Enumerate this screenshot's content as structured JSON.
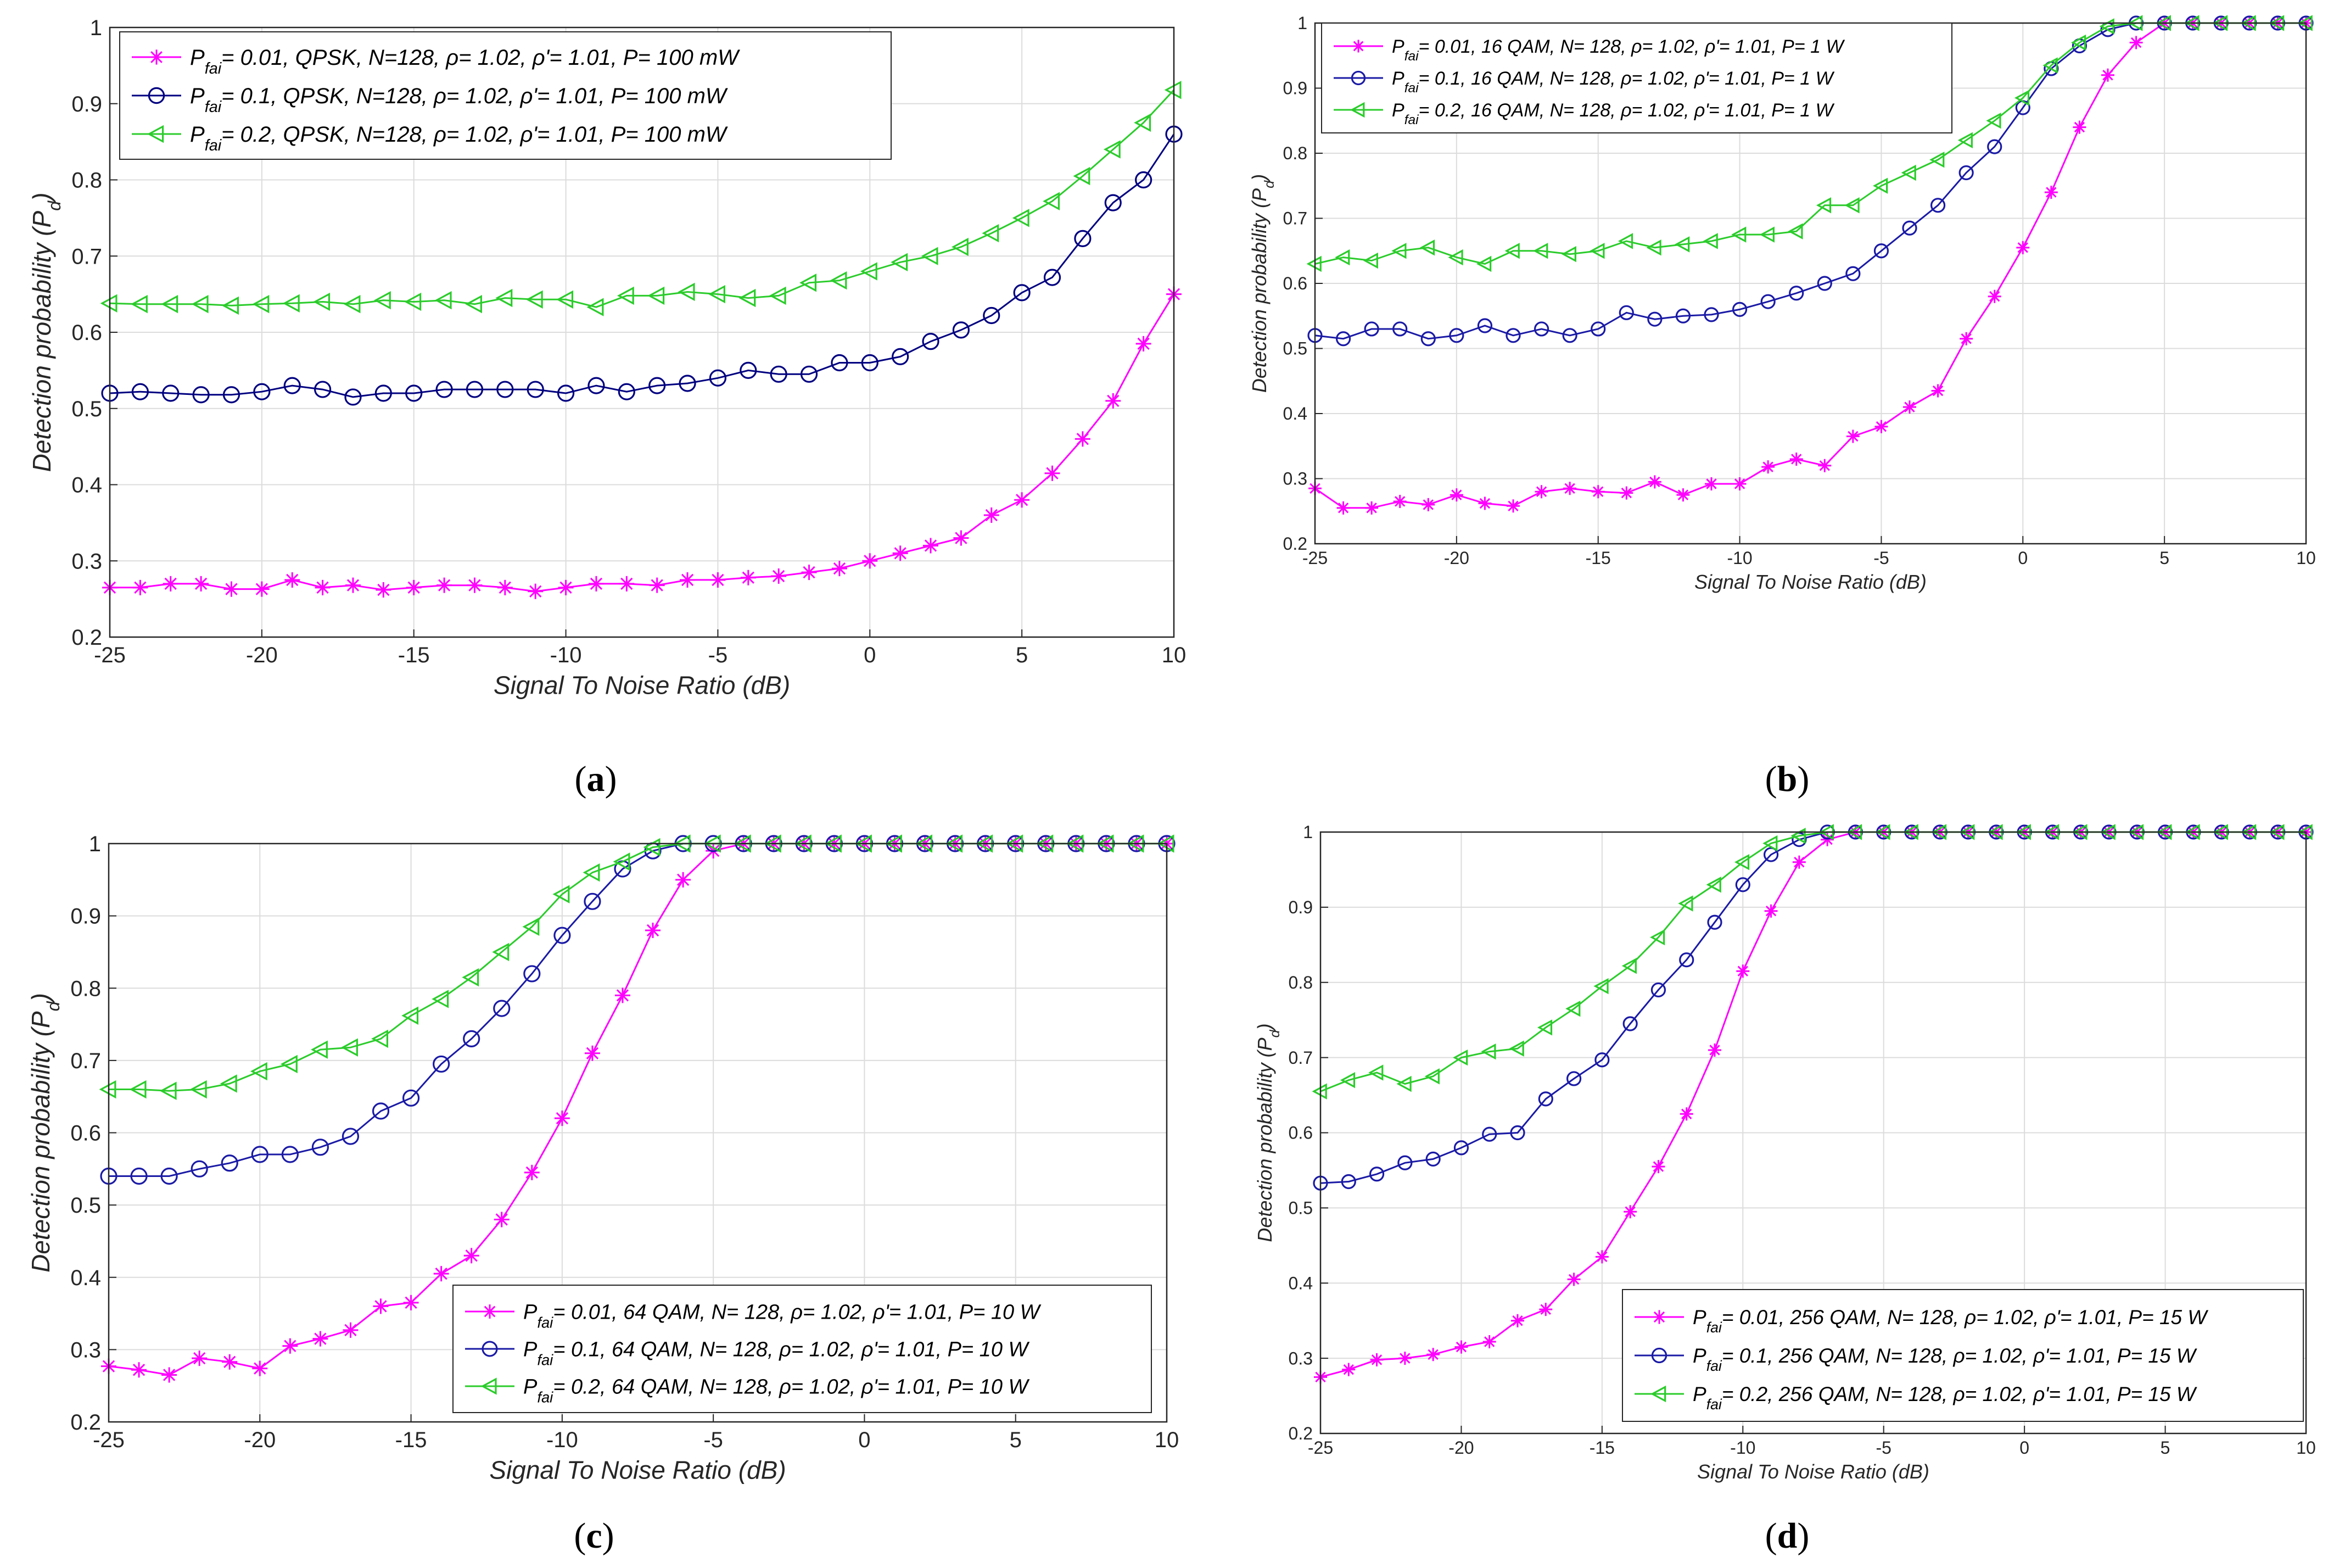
{
  "chart_data": [
    {
      "panel": "a",
      "caption": "(a)",
      "type": "line",
      "xlabel": "Signal To Noise Ratio (dB)",
      "ylabel": "Detection probability (P_d)",
      "xlim": [
        -25,
        10
      ],
      "ylim": [
        0.2,
        1
      ],
      "xticks": [
        -25,
        -20,
        -15,
        -10,
        -5,
        0,
        5,
        10
      ],
      "yticks": [
        0.2,
        0.3,
        0.4,
        0.5,
        0.6,
        0.7,
        0.8,
        0.9,
        1
      ],
      "grid": true,
      "legend_position": "top-left",
      "x": [
        -25,
        -24,
        -23,
        -22,
        -21,
        -20,
        -19,
        -18,
        -17,
        -16,
        -15,
        -14,
        -13,
        -12,
        -11,
        -10,
        -9,
        -8,
        -7,
        -6,
        -5,
        -4,
        -3,
        -2,
        -1,
        0,
        1,
        2,
        3,
        4,
        5,
        6,
        7,
        8,
        9,
        10
      ],
      "series": [
        {
          "legend": {
            "symbol": "P",
            "subscript": "fai",
            "text": "= 0.01, QPSK, N=128, ρ= 1.02, ρ'= 1.01, P= 100 mW"
          },
          "marker": "star",
          "color": "#ff00ff",
          "values": [
            0.265,
            0.265,
            0.27,
            0.27,
            0.263,
            0.263,
            0.275,
            0.265,
            0.268,
            0.262,
            0.265,
            0.268,
            0.268,
            0.265,
            0.26,
            0.265,
            0.27,
            0.27,
            0.268,
            0.275,
            0.275,
            0.278,
            0.28,
            0.285,
            0.29,
            0.3,
            0.31,
            0.32,
            0.33,
            0.36,
            0.38,
            0.415,
            0.46,
            0.51,
            0.585,
            0.65
          ]
        },
        {
          "legend": {
            "symbol": "P",
            "subscript": "fai",
            "text": "= 0.1, QPSK, N=128, ρ= 1.02, ρ'= 1.01, P= 100 mW"
          },
          "marker": "circle",
          "color": "#000080",
          "values": [
            0.52,
            0.522,
            0.52,
            0.518,
            0.518,
            0.522,
            0.53,
            0.525,
            0.515,
            0.52,
            0.52,
            0.525,
            0.525,
            0.525,
            0.525,
            0.52,
            0.53,
            0.522,
            0.53,
            0.533,
            0.54,
            0.55,
            0.545,
            0.545,
            0.56,
            0.56,
            0.568,
            0.588,
            0.603,
            0.622,
            0.652,
            0.672,
            0.723,
            0.77,
            0.8,
            0.86
          ]
        },
        {
          "legend": {
            "symbol": "P",
            "subscript": "fai",
            "text": "= 0.2, QPSK, N=128, ρ= 1.02, ρ'= 1.01, P= 100 mW"
          },
          "marker": "triangle-left",
          "color": "#2bcc2b",
          "values": [
            0.638,
            0.637,
            0.637,
            0.637,
            0.635,
            0.637,
            0.638,
            0.64,
            0.637,
            0.642,
            0.64,
            0.642,
            0.637,
            0.645,
            0.643,
            0.643,
            0.633,
            0.648,
            0.648,
            0.653,
            0.65,
            0.645,
            0.648,
            0.665,
            0.668,
            0.68,
            0.692,
            0.7,
            0.712,
            0.73,
            0.75,
            0.772,
            0.805,
            0.84,
            0.875,
            0.918
          ]
        }
      ]
    },
    {
      "panel": "b",
      "caption": "(b)",
      "type": "line",
      "xlabel": "Signal To Noise Ratio (dB)",
      "ylabel": "Detection probability (P_d)",
      "xlim": [
        -25,
        10
      ],
      "ylim": [
        0.2,
        1
      ],
      "xticks": [
        -25,
        -20,
        -15,
        -10,
        -5,
        0,
        5,
        10
      ],
      "yticks": [
        0.2,
        0.3,
        0.4,
        0.5,
        0.6,
        0.7,
        0.8,
        0.9,
        1
      ],
      "grid": true,
      "legend_position": "top-left",
      "x": [
        -25,
        -24,
        -23,
        -22,
        -21,
        -20,
        -19,
        -18,
        -17,
        -16,
        -15,
        -14,
        -13,
        -12,
        -11,
        -10,
        -9,
        -8,
        -7,
        -6,
        -5,
        -4,
        -3,
        -2,
        -1,
        0,
        1,
        2,
        3,
        4,
        5,
        6,
        7,
        8,
        9,
        10
      ],
      "series": [
        {
          "legend": {
            "symbol": "P",
            "subscript": "fai",
            "text": "= 0.01, 16 QAM, N= 128, ρ= 1.02, ρ'= 1.01, P= 1 W"
          },
          "marker": "star",
          "color": "#ff00ff",
          "values": [
            0.285,
            0.255,
            0.255,
            0.265,
            0.26,
            0.275,
            0.262,
            0.258,
            0.28,
            0.285,
            0.28,
            0.278,
            0.295,
            0.275,
            0.292,
            0.292,
            0.318,
            0.33,
            0.32,
            0.365,
            0.38,
            0.41,
            0.435,
            0.515,
            0.58,
            0.655,
            0.74,
            0.84,
            0.92,
            0.97,
            1,
            1,
            1,
            1,
            1,
            1
          ]
        },
        {
          "legend": {
            "symbol": "P",
            "subscript": "fai",
            "text": "= 0.1, 16 QAM, N= 128, ρ= 1.02, ρ'= 1.01, P= 1 W"
          },
          "marker": "circle",
          "color": "#1a1aa6",
          "values": [
            0.52,
            0.515,
            0.53,
            0.53,
            0.515,
            0.52,
            0.535,
            0.52,
            0.53,
            0.52,
            0.53,
            0.555,
            0.545,
            0.55,
            0.552,
            0.56,
            0.572,
            0.585,
            0.6,
            0.615,
            0.65,
            0.685,
            0.72,
            0.77,
            0.81,
            0.87,
            0.93,
            0.965,
            0.99,
            1,
            1,
            1,
            1,
            1,
            1,
            1
          ]
        },
        {
          "legend": {
            "symbol": "P",
            "subscript": "fai",
            "text": "= 0.2, 16 QAM, N= 128, ρ= 1.02, ρ'= 1.01, P= 1 W"
          },
          "marker": "triangle-left",
          "color": "#2bcc2b",
          "values": [
            0.63,
            0.64,
            0.635,
            0.65,
            0.655,
            0.64,
            0.63,
            0.65,
            0.65,
            0.645,
            0.65,
            0.665,
            0.655,
            0.66,
            0.665,
            0.675,
            0.675,
            0.68,
            0.72,
            0.72,
            0.75,
            0.77,
            0.79,
            0.82,
            0.85,
            0.885,
            0.935,
            0.97,
            0.995,
            1,
            1,
            1,
            1,
            1,
            1,
            1
          ]
        }
      ]
    },
    {
      "panel": "c",
      "caption": "(c)",
      "type": "line",
      "xlabel": "Signal To Noise Ratio (dB)",
      "ylabel": "Detection probability (P_d)",
      "xlim": [
        -25,
        10
      ],
      "ylim": [
        0.2,
        1
      ],
      "xticks": [
        -25,
        -20,
        -15,
        -10,
        -5,
        0,
        5,
        10
      ],
      "yticks": [
        0.2,
        0.3,
        0.4,
        0.5,
        0.6,
        0.7,
        0.8,
        0.9,
        1
      ],
      "grid": true,
      "legend_position": "bottom-right",
      "x": [
        -25,
        -24,
        -23,
        -22,
        -21,
        -20,
        -19,
        -18,
        -17,
        -16,
        -15,
        -14,
        -13,
        -12,
        -11,
        -10,
        -9,
        -8,
        -7,
        -6,
        -5,
        -4,
        -3,
        -2,
        -1,
        0,
        1,
        2,
        3,
        4,
        5,
        6,
        7,
        8,
        9,
        10
      ],
      "series": [
        {
          "legend": {
            "symbol": "P",
            "subscript": "fai",
            "text": "= 0.01, 64 QAM, N= 128, ρ= 1.02, ρ'= 1.01, P= 10 W"
          },
          "marker": "star",
          "color": "#ff00ff",
          "values": [
            0.277,
            0.272,
            0.265,
            0.288,
            0.283,
            0.274,
            0.305,
            0.315,
            0.327,
            0.36,
            0.365,
            0.405,
            0.43,
            0.48,
            0.545,
            0.62,
            0.71,
            0.79,
            0.88,
            0.95,
            0.99,
            1,
            1,
            1,
            1,
            1,
            1,
            1,
            1,
            1,
            1,
            1,
            1,
            1,
            1,
            1
          ]
        },
        {
          "legend": {
            "symbol": "P",
            "subscript": "fai",
            "text": "= 0.1, 64 QAM, N= 128, ρ= 1.02, ρ'= 1.01, P= 10 W"
          },
          "marker": "circle",
          "color": "#1a1aa6",
          "values": [
            0.54,
            0.54,
            0.54,
            0.55,
            0.558,
            0.57,
            0.57,
            0.58,
            0.595,
            0.63,
            0.648,
            0.695,
            0.73,
            0.772,
            0.82,
            0.873,
            0.92,
            0.965,
            0.99,
            1,
            1,
            1,
            1,
            1,
            1,
            1,
            1,
            1,
            1,
            1,
            1,
            1,
            1,
            1,
            1,
            1
          ]
        },
        {
          "legend": {
            "symbol": "P",
            "subscript": "fai",
            "text": "= 0.2, 64 QAM, N= 128, ρ= 1.02, ρ'= 1.01, P= 10 W"
          },
          "marker": "triangle-left",
          "color": "#2bcc2b",
          "values": [
            0.66,
            0.66,
            0.658,
            0.66,
            0.668,
            0.685,
            0.695,
            0.715,
            0.718,
            0.73,
            0.762,
            0.785,
            0.815,
            0.85,
            0.885,
            0.93,
            0.96,
            0.975,
            0.995,
            1,
            1,
            1,
            1,
            1,
            1,
            1,
            1,
            1,
            1,
            1,
            1,
            1,
            1,
            1,
            1,
            1
          ]
        }
      ]
    },
    {
      "panel": "d",
      "caption": "(d)",
      "type": "line",
      "xlabel": "Signal To Noise Ratio (dB)",
      "ylabel": "Detection probability (P_d)",
      "xlim": [
        -25,
        10
      ],
      "ylim": [
        0.2,
        1
      ],
      "xticks": [
        -25,
        -20,
        -15,
        -10,
        -5,
        0,
        5,
        10
      ],
      "yticks": [
        0.2,
        0.3,
        0.4,
        0.5,
        0.6,
        0.7,
        0.8,
        0.9,
        1
      ],
      "grid": true,
      "legend_position": "bottom-right",
      "x": [
        -25,
        -24,
        -23,
        -22,
        -21,
        -20,
        -19,
        -18,
        -17,
        -16,
        -15,
        -14,
        -13,
        -12,
        -11,
        -10,
        -9,
        -8,
        -7,
        -6,
        -5,
        -4,
        -3,
        -2,
        -1,
        0,
        1,
        2,
        3,
        4,
        5,
        6,
        7,
        8,
        9,
        10
      ],
      "series": [
        {
          "legend": {
            "symbol": "P",
            "subscript": "fai",
            "text": "= 0.01, 256 QAM, N= 128, ρ= 1.02, ρ'= 1.01, P= 15 W"
          },
          "marker": "star",
          "color": "#ff00ff",
          "values": [
            0.275,
            0.285,
            0.298,
            0.3,
            0.305,
            0.315,
            0.322,
            0.35,
            0.365,
            0.405,
            0.435,
            0.495,
            0.555,
            0.625,
            0.71,
            0.815,
            0.895,
            0.96,
            0.99,
            1,
            1,
            1,
            1,
            1,
            1,
            1,
            1,
            1,
            1,
            1,
            1,
            1,
            1,
            1,
            1,
            1
          ]
        },
        {
          "legend": {
            "symbol": "P",
            "subscript": "fai",
            "text": "= 0.1, 256 QAM, N= 128, ρ= 1.02, ρ'= 1.01, P= 15 W"
          },
          "marker": "circle",
          "color": "#1a1aa6",
          "values": [
            0.533,
            0.535,
            0.545,
            0.56,
            0.565,
            0.58,
            0.598,
            0.6,
            0.645,
            0.672,
            0.697,
            0.745,
            0.79,
            0.83,
            0.88,
            0.93,
            0.97,
            0.99,
            1,
            1,
            1,
            1,
            1,
            1,
            1,
            1,
            1,
            1,
            1,
            1,
            1,
            1,
            1,
            1,
            1,
            1
          ]
        },
        {
          "legend": {
            "symbol": "P",
            "subscript": "fai",
            "text": "= 0.2, 256 QAM, N= 128, ρ= 1.02, ρ'= 1.01, P= 15 W"
          },
          "marker": "triangle-left",
          "color": "#2bcc2b",
          "values": [
            0.655,
            0.67,
            0.68,
            0.665,
            0.675,
            0.7,
            0.708,
            0.712,
            0.74,
            0.765,
            0.795,
            0.822,
            0.86,
            0.905,
            0.93,
            0.96,
            0.985,
            0.995,
            1,
            1,
            1,
            1,
            1,
            1,
            1,
            1,
            1,
            1,
            1,
            1,
            1,
            1,
            1,
            1,
            1,
            1
          ]
        }
      ]
    }
  ]
}
